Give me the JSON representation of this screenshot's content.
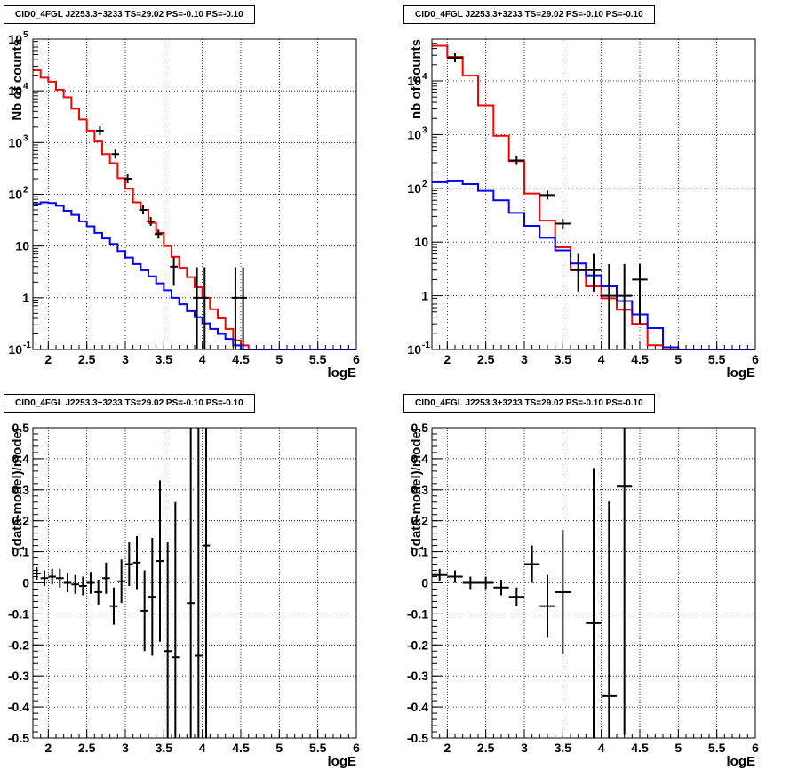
{
  "chart_data": [
    {
      "type": "histogram",
      "title": "CID0_4FGL J2253.3+3233 TS=29.02 PS=-0.10 PS=-0.10",
      "xlabel": "logE",
      "ylabel": "Nb of counts",
      "yscale": "log",
      "xlim": [
        1.8,
        6.0
      ],
      "ylim": [
        0.1,
        100000
      ],
      "grid": true,
      "x_ticks": [
        "2",
        "2.5",
        "3",
        "3.5",
        "4",
        "4.5",
        "5",
        "5.5",
        "6"
      ],
      "y_ticks": [
        "10^-1",
        "1",
        "10",
        "10^2",
        "10^3",
        "10^4",
        "10^5"
      ],
      "bin_edges": [
        1.8,
        1.9,
        2.0,
        2.1,
        2.2,
        2.3,
        2.4,
        2.5,
        2.6,
        2.7,
        2.8,
        2.9,
        3.0,
        3.1,
        3.2,
        3.3,
        3.4,
        3.5,
        3.6,
        3.7,
        3.8,
        3.9,
        4.0,
        4.1,
        4.2,
        4.3,
        4.4,
        4.5,
        4.6,
        4.7,
        4.8,
        4.9,
        5.0,
        5.1,
        5.2,
        5.3,
        5.4,
        5.5,
        5.6,
        5.7,
        5.8,
        5.9,
        6.0
      ],
      "series": [
        {
          "role": "total",
          "color": "#ff0000",
          "values": [
            25000,
            18000,
            15000,
            10500,
            7500,
            4500,
            2800,
            1700,
            1050,
            600,
            400,
            205,
            128,
            70,
            50,
            28,
            18,
            10,
            6.2,
            3.8,
            2.5,
            1.6,
            1.0,
            0.6,
            0.4,
            0.25,
            0.15,
            0.12,
            0.1,
            0.1,
            0.1,
            0.1,
            0.1,
            0.1,
            0.1,
            0.1,
            0.1,
            0.1,
            0.1,
            0.1,
            0.1,
            0.1
          ]
        },
        {
          "role": "source",
          "color": "#0000ff",
          "values": [
            65,
            70,
            68,
            60,
            48,
            40,
            30,
            24,
            18,
            14,
            11,
            8,
            6,
            4.5,
            3.4,
            2.6,
            1.9,
            1.4,
            1.0,
            0.75,
            0.55,
            0.42,
            0.32,
            0.25,
            0.2,
            0.16,
            0.12,
            0.1,
            0.1,
            0.1,
            0.1,
            0.1,
            0.1,
            0.1,
            0.1,
            0.1,
            0.1,
            0.1,
            0.1,
            0.1,
            0.1,
            0.1
          ]
        },
        {
          "role": "data",
          "color": "#000000",
          "points": [
            [
              2.67,
              1700,
              null,
              null
            ],
            [
              2.87,
              600,
              null,
              null
            ],
            [
              3.03,
              200,
              null,
              null
            ],
            [
              3.23,
              50,
              null,
              null
            ],
            [
              3.33,
              30,
              null,
              null
            ],
            [
              3.43,
              17,
              null,
              null
            ],
            [
              3.63,
              4,
              2.3,
              2.1
            ],
            [
              3.93,
              1,
              0.95,
              2.9
            ],
            [
              4.03,
              1,
              0.95,
              2.9
            ],
            [
              4.43,
              1,
              0.95,
              2.9
            ],
            [
              4.53,
              1,
              0.95,
              2.9
            ]
          ]
        }
      ]
    },
    {
      "type": "histogram",
      "title": "CID0_4FGL J2253.3+3233 TS=29.02 PS=-0.10 PS=-0.10",
      "xlabel": "logE",
      "ylabel": "nb of counts",
      "yscale": "log",
      "xlim": [
        1.8,
        6.0
      ],
      "ylim": [
        0.1,
        60000
      ],
      "grid": true,
      "x_ticks": [
        "2",
        "2.5",
        "3",
        "3.5",
        "4",
        "4.5",
        "5",
        "5.5",
        "6"
      ],
      "y_ticks": [
        "10^-1",
        "1",
        "10",
        "10^2",
        "10^3",
        "10^4"
      ],
      "bin_edges": [
        1.8,
        2.0,
        2.2,
        2.4,
        2.6,
        2.8,
        3.0,
        3.2,
        3.4,
        3.6,
        3.8,
        4.0,
        4.2,
        4.4,
        4.6,
        4.8,
        5.0,
        5.2,
        5.4,
        5.6,
        5.8,
        6.0
      ],
      "series": [
        {
          "role": "total",
          "color": "#ff0000",
          "values": [
            45000,
            28000,
            12500,
            3500,
            950,
            320,
            80,
            25,
            8,
            3,
            1.5,
            0.9,
            0.55,
            0.3,
            0.12,
            0.1,
            0.1,
            0.1,
            0.1,
            0.1,
            0.1
          ]
        },
        {
          "role": "source",
          "color": "#0000ff",
          "values": [
            130,
            135,
            120,
            90,
            60,
            35,
            20,
            12,
            7,
            4,
            2.4,
            1.5,
            0.8,
            0.45,
            0.25,
            0.11,
            0.1,
            0.1,
            0.1,
            0.1,
            0.1
          ]
        },
        {
          "role": "data",
          "color": "#000000",
          "points": [
            [
              2.1,
              27000,
              null,
              null
            ],
            [
              2.9,
              330,
              null,
              null
            ],
            [
              3.3,
              75,
              null,
              null
            ],
            [
              3.5,
              22,
              5,
              5
            ],
            [
              3.7,
              3,
              1.8,
              3
            ],
            [
              3.9,
              3,
              1.8,
              3
            ],
            [
              4.1,
              1,
              0.95,
              2.9
            ],
            [
              4.3,
              1,
              0.95,
              2.9
            ],
            [
              4.5,
              2,
              1.7,
              1.9
            ]
          ]
        }
      ]
    },
    {
      "type": "scatter",
      "title": "CID0_4FGL J2253.3+3233 TS=29.02 PS=-0.10 PS=-0.10",
      "xlabel": "logE",
      "ylabel": "(data-model)/model",
      "xlim": [
        1.8,
        6.0
      ],
      "ylim": [
        -0.5,
        0.5
      ],
      "grid": true,
      "x_ticks": [
        "2",
        "2.5",
        "3",
        "3.5",
        "4",
        "4.5",
        "5",
        "5.5",
        "6"
      ],
      "y_ticks": [
        "-0.5",
        "-0.4",
        "-0.3",
        "-0.2",
        "-0.1",
        "0",
        "0.1",
        "0.2",
        "0.3",
        "0.4",
        "0.5"
      ],
      "half_width": 0.05,
      "points": [
        [
          1.85,
          0.03,
          0.02
        ],
        [
          1.95,
          0.015,
          0.025
        ],
        [
          2.05,
          0.02,
          0.025
        ],
        [
          2.15,
          0.015,
          0.03
        ],
        [
          2.25,
          0.0,
          0.03
        ],
        [
          2.35,
          -0.005,
          0.03
        ],
        [
          2.45,
          -0.01,
          0.03
        ],
        [
          2.55,
          0.0,
          0.035
        ],
        [
          2.65,
          -0.03,
          0.04
        ],
        [
          2.75,
          0.015,
          0.05
        ],
        [
          2.85,
          -0.075,
          0.06
        ],
        [
          2.95,
          0.005,
          0.07
        ],
        [
          3.05,
          0.06,
          0.07
        ],
        [
          3.15,
          0.065,
          0.085
        ],
        [
          3.25,
          -0.09,
          0.13
        ],
        [
          3.35,
          -0.045,
          0.19
        ],
        [
          3.45,
          0.07,
          0.26
        ],
        [
          3.55,
          -0.22,
          0.35
        ],
        [
          3.65,
          -0.24,
          0.5
        ],
        [
          3.85,
          -0.065,
          0.7
        ],
        [
          3.95,
          -0.235,
          0.9
        ],
        [
          4.05,
          0.12,
          0.8
        ]
      ]
    },
    {
      "type": "scatter",
      "title": "CID0_4FGL J2253.3+3233 TS=29.02 PS=-0.10 PS=-0.10",
      "xlabel": "logE",
      "ylabel": "(data-model)/model",
      "xlim": [
        1.8,
        6.0
      ],
      "ylim": [
        -0.5,
        0.5
      ],
      "grid": true,
      "x_ticks": [
        "2",
        "2.5",
        "3",
        "3.5",
        "4",
        "4.5",
        "5",
        "5.5",
        "6"
      ],
      "y_ticks": [
        "-0.5",
        "-0.4",
        "-0.3",
        "-0.2",
        "-0.1",
        "0",
        "0.1",
        "0.2",
        "0.3",
        "0.4",
        "0.5"
      ],
      "half_width": 0.1,
      "points": [
        [
          1.9,
          0.025,
          0.02
        ],
        [
          2.1,
          0.02,
          0.02
        ],
        [
          2.3,
          0.0,
          0.02
        ],
        [
          2.5,
          0.0,
          0.02
        ],
        [
          2.7,
          -0.015,
          0.025
        ],
        [
          2.9,
          -0.045,
          0.03
        ],
        [
          3.1,
          0.06,
          0.06
        ],
        [
          3.3,
          -0.075,
          0.1
        ],
        [
          3.5,
          -0.03,
          0.2
        ],
        [
          3.9,
          -0.13,
          0.5
        ],
        [
          4.1,
          -0.365,
          0.63
        ],
        [
          4.3,
          0.31,
          0.8
        ]
      ]
    }
  ]
}
